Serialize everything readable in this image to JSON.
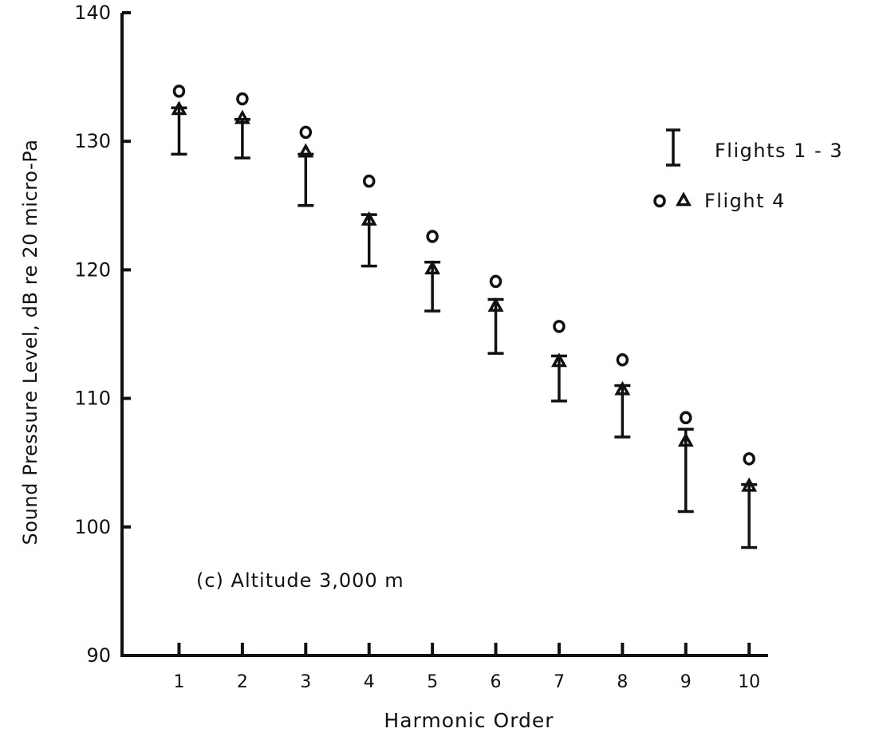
{
  "chart_data": {
    "type": "scatter",
    "title": "",
    "annotation": "(c) Altitude 3,000 m",
    "xlabel": "Harmonic Order",
    "ylabel": "Sound Pressure Level,  dB re 20 micro-Pa",
    "x": [
      1,
      2,
      3,
      4,
      5,
      6,
      7,
      8,
      9,
      10
    ],
    "xlim": [
      0.1,
      10.3
    ],
    "ylim": [
      90,
      140
    ],
    "yticks": [
      90,
      100,
      110,
      120,
      130,
      140
    ],
    "xticks": [
      1,
      2,
      3,
      4,
      5,
      6,
      7,
      8,
      9,
      10
    ],
    "grid": false,
    "legend_position": "top-right",
    "legend": [
      {
        "symbol": "error-bar",
        "label": "Flights 1 - 3"
      },
      {
        "symbol": "circle-triangle",
        "label": "Flight 4"
      }
    ],
    "series": [
      {
        "name": "Flights 1 - 3",
        "kind": "range",
        "low": [
          129.0,
          128.7,
          125.0,
          120.3,
          116.8,
          113.5,
          109.8,
          107.0,
          101.2,
          98.4
        ],
        "high": [
          132.6,
          131.7,
          129.0,
          124.3,
          120.6,
          117.7,
          113.3,
          111.0,
          107.6,
          103.3
        ]
      },
      {
        "name": "Flight 4",
        "marker": "circle",
        "values": [
          133.9,
          133.3,
          130.7,
          126.9,
          122.6,
          119.1,
          115.6,
          113.0,
          108.5,
          105.3
        ]
      },
      {
        "name": "Flight 4",
        "marker": "triangle",
        "values": [
          132.5,
          131.8,
          129.2,
          123.9,
          120.1,
          117.2,
          112.9,
          110.7,
          106.7,
          103.2
        ]
      }
    ]
  }
}
